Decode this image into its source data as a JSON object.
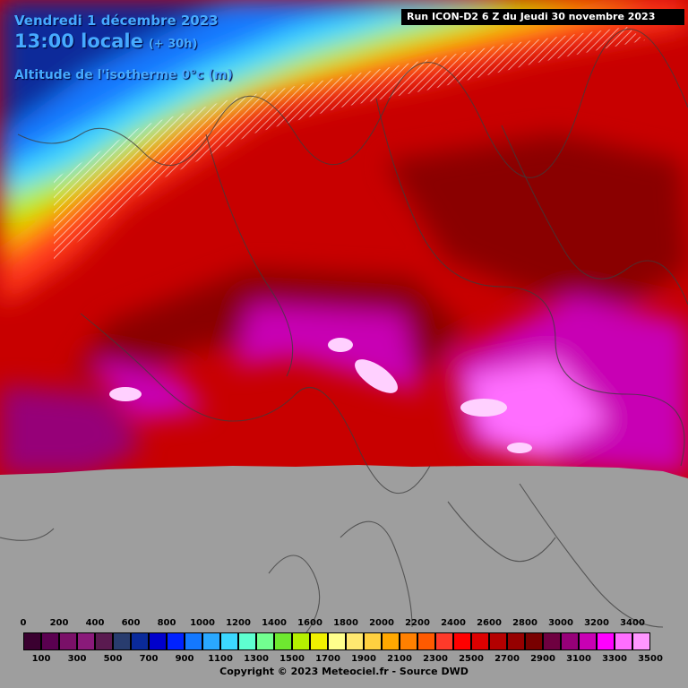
{
  "header": {
    "date": "Vendredi 1 décembre 2023",
    "time": "13:00 locale",
    "lead": "(+ 30h)",
    "parameter": "Altitude de l'isotherme 0°c (m)"
  },
  "run_info": "Run ICON-D2 6 Z du Jeudi 30 novembre 2023",
  "legend": {
    "top_labels": [
      "0",
      "200",
      "400",
      "600",
      "800",
      "1000",
      "1200",
      "1400",
      "1600",
      "1800",
      "2000",
      "2200",
      "2400",
      "2600",
      "2800",
      "3000",
      "3200",
      "3400"
    ],
    "bottom_labels": [
      "100",
      "300",
      "500",
      "700",
      "900",
      "1100",
      "1300",
      "1500",
      "1700",
      "1900",
      "2100",
      "2300",
      "2500",
      "2700",
      "2900",
      "3100",
      "3300",
      "3500"
    ],
    "colors": [
      "#3a0030",
      "#5a0050",
      "#7a1068",
      "#8a1a7a",
      "#5a1a50",
      "#283c6e",
      "#0a2a9a",
      "#0000cc",
      "#0022ff",
      "#1478ff",
      "#2aa8ff",
      "#3cd8ff",
      "#5effd0",
      "#72ff90",
      "#6ee830",
      "#b4f000",
      "#f0f000",
      "#ffff8c",
      "#ffe870",
      "#ffd040",
      "#ffa800",
      "#ff8000",
      "#ff5a00",
      "#ff3a2a",
      "#ff0000",
      "#dc0000",
      "#b40000",
      "#960000",
      "#780000",
      "#6e0040",
      "#960078",
      "#c800b4",
      "#ff00ff",
      "#ff6eff",
      "#ff96ff"
    ]
  },
  "copyright": "Copyright © 2023 Meteociel.fr - Source DWD"
}
